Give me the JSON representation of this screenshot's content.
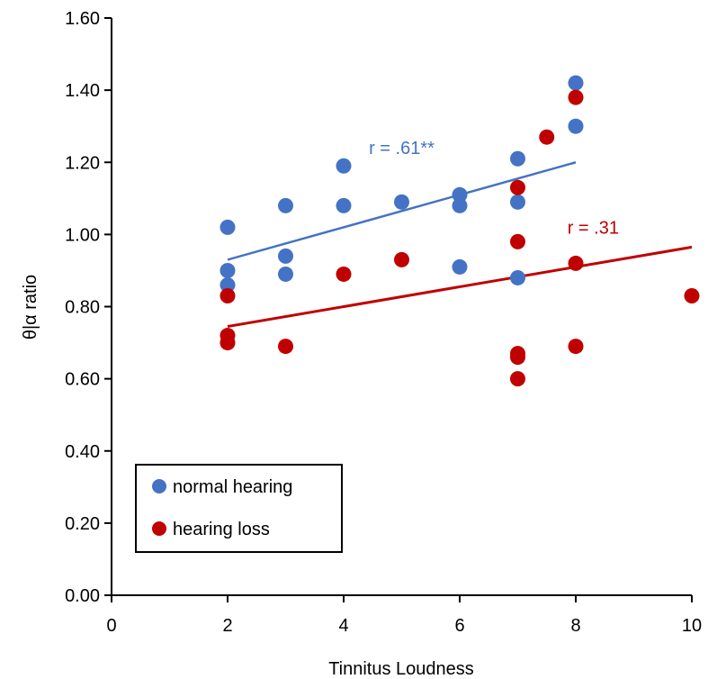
{
  "chart_data": {
    "type": "scatter",
    "xlabel": "Tinnitus Loudness",
    "ylabel": "θ|α ratio",
    "xlim": [
      0,
      10
    ],
    "ylim": [
      0,
      1.6
    ],
    "x_ticks": [
      "0",
      "2",
      "4",
      "6",
      "8",
      "10"
    ],
    "y_ticks": [
      "0.00",
      "0.20",
      "0.40",
      "0.60",
      "0.80",
      "1.00",
      "1.20",
      "1.40",
      "1.60"
    ],
    "grid": false,
    "legend_position": "bottom-left",
    "series": [
      {
        "name": "normal hearing",
        "color": "#4472C4",
        "points": [
          {
            "x": 2,
            "y": 1.02
          },
          {
            "x": 2,
            "y": 0.9
          },
          {
            "x": 2,
            "y": 0.86
          },
          {
            "x": 3,
            "y": 1.08
          },
          {
            "x": 3,
            "y": 0.94
          },
          {
            "x": 3,
            "y": 0.89
          },
          {
            "x": 4,
            "y": 1.19
          },
          {
            "x": 4,
            "y": 1.08
          },
          {
            "x": 5,
            "y": 1.09
          },
          {
            "x": 6,
            "y": 1.11
          },
          {
            "x": 6,
            "y": 1.08
          },
          {
            "x": 6,
            "y": 0.91
          },
          {
            "x": 7,
            "y": 1.21
          },
          {
            "x": 7,
            "y": 1.09
          },
          {
            "x": 7,
            "y": 0.88
          },
          {
            "x": 8,
            "y": 1.42
          },
          {
            "x": 8,
            "y": 1.3
          }
        ],
        "trendline": {
          "x": [
            2,
            8
          ],
          "y": [
            0.93,
            1.2
          ]
        },
        "annotation": "r = .61**"
      },
      {
        "name": "hearing loss",
        "color": "#C00000",
        "points": [
          {
            "x": 2,
            "y": 0.83
          },
          {
            "x": 2,
            "y": 0.72
          },
          {
            "x": 2,
            "y": 0.7
          },
          {
            "x": 3,
            "y": 0.69
          },
          {
            "x": 4,
            "y": 0.89
          },
          {
            "x": 5,
            "y": 0.93
          },
          {
            "x": 7,
            "y": 1.13
          },
          {
            "x": 7,
            "y": 0.98
          },
          {
            "x": 7,
            "y": 0.67
          },
          {
            "x": 7,
            "y": 0.66
          },
          {
            "x": 7,
            "y": 0.6
          },
          {
            "x": 7.5,
            "y": 1.27
          },
          {
            "x": 8,
            "y": 1.38
          },
          {
            "x": 8,
            "y": 0.92
          },
          {
            "x": 8,
            "y": 0.69
          },
          {
            "x": 10,
            "y": 0.83
          }
        ],
        "trendline": {
          "x": [
            2,
            10
          ],
          "y": [
            0.745,
            0.965
          ]
        },
        "annotation": "r = .31"
      }
    ]
  }
}
